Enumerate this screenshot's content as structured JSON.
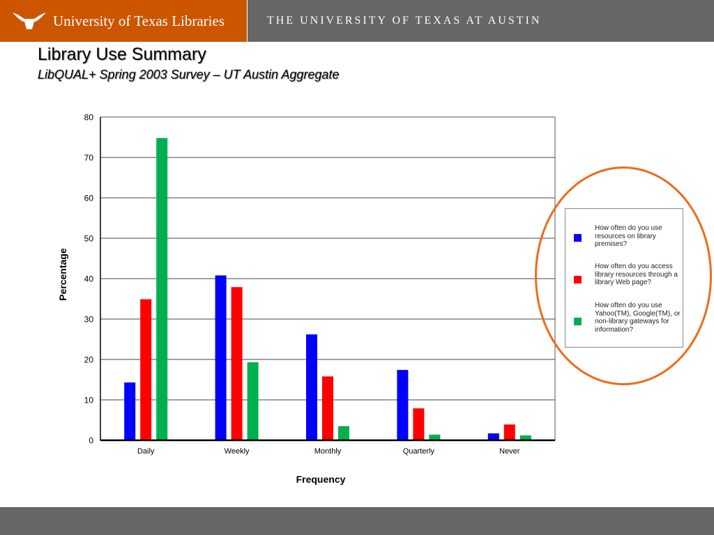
{
  "header": {
    "library_name": "University of Texas Libraries",
    "university_name": "THE UNIVERSITY OF TEXAS AT AUSTIN",
    "brand_color": "#cc5500",
    "bar_color": "#666666"
  },
  "slide": {
    "title": "Library Use Summary",
    "subtitle": "LibQUAL+ Spring 2003 Survey – UT Austin Aggregate"
  },
  "chart_data": {
    "type": "bar",
    "title": "",
    "xlabel": "Frequency",
    "ylabel": "Percentage",
    "ylim": [
      0,
      80
    ],
    "yticks": [
      0,
      10,
      20,
      30,
      40,
      50,
      60,
      70,
      80
    ],
    "grid": true,
    "legend_position": "right",
    "categories": [
      "Daily",
      "Weekly",
      "Monthly",
      "Quarterly",
      "Never"
    ],
    "series": [
      {
        "name": "How often do you use resources on library premises?",
        "color": "#0000ff",
        "values": [
          14.3,
          40.8,
          26.2,
          17.4,
          1.7
        ]
      },
      {
        "name": "How often do you access library resources through a library Web page?",
        "color": "#ff0000",
        "values": [
          34.9,
          37.9,
          15.8,
          7.9,
          3.9
        ]
      },
      {
        "name": "How often do you use Yahoo(TM), Google(TM), or non-library gateways for information?",
        "color": "#00b050",
        "values": [
          74.8,
          19.3,
          3.5,
          1.4,
          1.2
        ]
      }
    ]
  },
  "legend": {
    "items": [
      {
        "text": "How often do you use resources on library premises?",
        "color": "#0000ff"
      },
      {
        "text": "How often do you access library resources through a library Web page?",
        "color": "#ff0000"
      },
      {
        "text": "How often do you use Yahoo(TM), Google(TM), or non-library gateways for information?",
        "color": "#00b050"
      }
    ]
  },
  "annotation": {
    "highlight_color": "#ee6a1a"
  }
}
